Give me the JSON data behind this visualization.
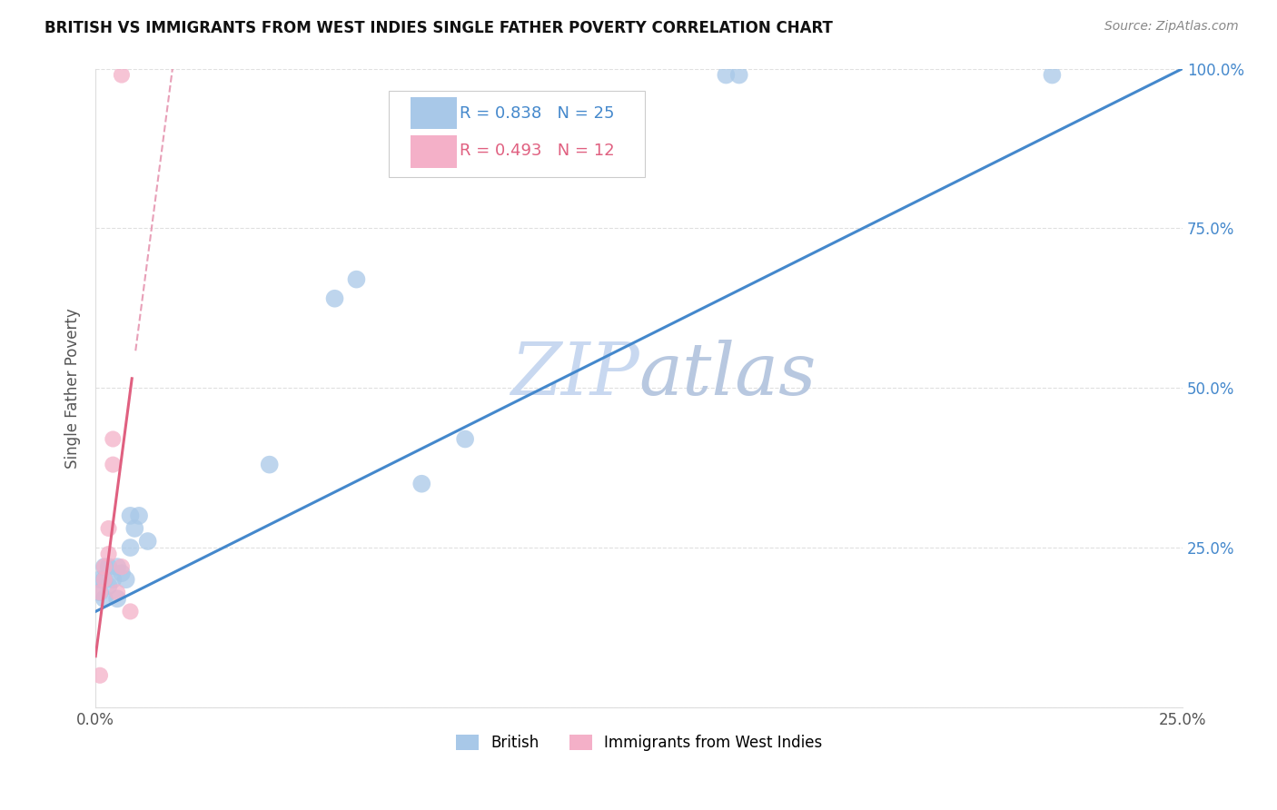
{
  "title": "BRITISH VS IMMIGRANTS FROM WEST INDIES SINGLE FATHER POVERTY CORRELATION CHART",
  "source": "Source: ZipAtlas.com",
  "ylabel": "Single Father Poverty",
  "xlim": [
    0.0,
    0.25
  ],
  "ylim": [
    0.0,
    1.0
  ],
  "british_R": 0.838,
  "british_N": 25,
  "west_indies_R": 0.493,
  "west_indies_N": 12,
  "british_color": "#a8c8e8",
  "west_indies_color": "#f4b0c8",
  "british_line_color": "#4488cc",
  "west_indies_line_color": "#e06080",
  "west_indies_dashed_color": "#e8a0b8",
  "watermark_zip_color": "#d0dff0",
  "watermark_atlas_color": "#c0d4e8",
  "british_x": [
    0.001,
    0.001,
    0.002,
    0.002,
    0.002,
    0.003,
    0.003,
    0.004,
    0.005,
    0.005,
    0.006,
    0.007,
    0.008,
    0.008,
    0.009,
    0.01,
    0.012,
    0.04,
    0.055,
    0.06,
    0.075,
    0.085,
    0.145,
    0.148,
    0.22
  ],
  "british_y": [
    0.18,
    0.2,
    0.17,
    0.2,
    0.22,
    0.19,
    0.22,
    0.2,
    0.17,
    0.22,
    0.21,
    0.2,
    0.25,
    0.3,
    0.28,
    0.3,
    0.26,
    0.38,
    0.64,
    0.67,
    0.35,
    0.42,
    0.99,
    0.99,
    0.99
  ],
  "west_indies_x": [
    0.001,
    0.001,
    0.002,
    0.002,
    0.003,
    0.003,
    0.004,
    0.004,
    0.005,
    0.006,
    0.006,
    0.008
  ],
  "west_indies_y": [
    0.05,
    0.18,
    0.2,
    0.22,
    0.24,
    0.28,
    0.38,
    0.42,
    0.18,
    0.22,
    0.99,
    0.15
  ]
}
